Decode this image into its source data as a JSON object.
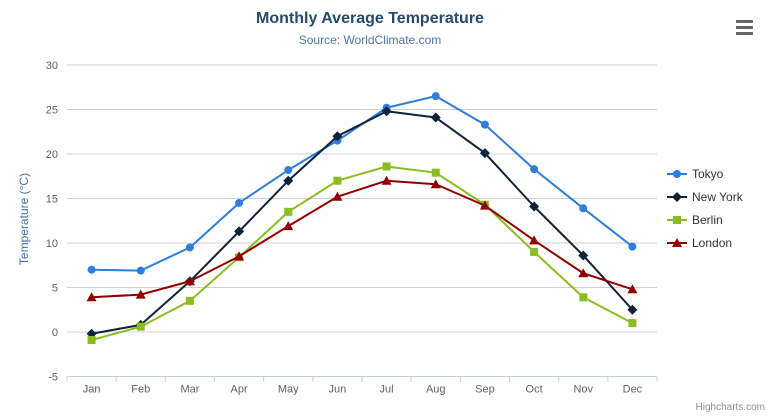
{
  "chart": {
    "toolbar": {
      "menu_icon": "hamburger-menu-icon"
    },
    "credits": {
      "label": "Highcharts.com"
    }
  },
  "chart_data": {
    "type": "line",
    "title": "Monthly Average Temperature",
    "subtitle": "Source: WorldClimate.com",
    "xlabel": "",
    "ylabel": "Temperature (°C)",
    "ylim": [
      -5,
      30
    ],
    "ytick_step": 5,
    "grid": true,
    "legend_position": "right",
    "categories": [
      "Jan",
      "Feb",
      "Mar",
      "Apr",
      "May",
      "Jun",
      "Jul",
      "Aug",
      "Sep",
      "Oct",
      "Nov",
      "Dec"
    ],
    "series": [
      {
        "name": "Tokyo",
        "color": "#2f7ed8",
        "marker": "circle",
        "values": [
          7.0,
          6.9,
          9.5,
          14.5,
          18.2,
          21.5,
          25.2,
          26.5,
          23.3,
          18.3,
          13.9,
          9.6
        ]
      },
      {
        "name": "New York",
        "color": "#0d233a",
        "marker": "diamond",
        "values": [
          -0.2,
          0.8,
          5.7,
          11.3,
          17.0,
          22.0,
          24.8,
          24.1,
          20.1,
          14.1,
          8.6,
          2.5
        ]
      },
      {
        "name": "Berlin",
        "color": "#8bbc21",
        "marker": "square",
        "values": [
          -0.9,
          0.6,
          3.5,
          8.4,
          13.5,
          17.0,
          18.6,
          17.9,
          14.3,
          9.0,
          3.9,
          1.0
        ]
      },
      {
        "name": "London",
        "color": "#910000",
        "marker": "triangle",
        "values": [
          3.9,
          4.2,
          5.7,
          8.5,
          11.9,
          15.2,
          17.0,
          16.6,
          14.2,
          10.3,
          6.6,
          4.8
        ]
      }
    ],
    "style": {
      "grid_color": "#d0d0d0",
      "axis_color": "#c0d0e0",
      "tick_label_color": "#606060",
      "title_color": "#274b6d",
      "subtitle_color": "#4d759e",
      "yaxis_title_color": "#4572A7",
      "legend_text_color": "#333333",
      "credits_color": "#909090"
    }
  }
}
